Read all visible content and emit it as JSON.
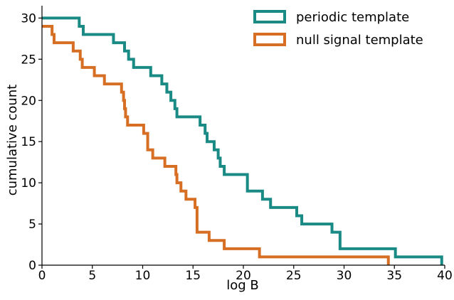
{
  "chart_data": {
    "type": "line",
    "step": "post",
    "xlabel": "log B",
    "ylabel": "cumulative count",
    "xlim": [
      0,
      40
    ],
    "ylim": [
      0,
      31.5
    ],
    "xticks": [
      0,
      5,
      10,
      15,
      20,
      25,
      30,
      35,
      40
    ],
    "yticks": [
      0,
      5,
      10,
      15,
      20,
      25,
      30
    ],
    "grid": false,
    "legend_position": "top-right",
    "series": [
      {
        "name": "periodic template",
        "color": "#1a8a85",
        "x": [
          0,
          3.7,
          4.1,
          7.1,
          8.2,
          8.6,
          9.1,
          10.8,
          11.9,
          12.4,
          12.8,
          13.2,
          13.4,
          15.7,
          16.2,
          16.4,
          17.1,
          17.5,
          17.7,
          18.1,
          20.4,
          21.9,
          22.7,
          25.3,
          25.8,
          28.8,
          29.6,
          35.1,
          39.7
        ],
        "y": [
          30,
          29,
          28,
          27,
          26,
          25,
          24,
          23,
          22,
          21,
          20,
          19,
          18,
          17,
          16,
          15,
          14,
          13,
          12,
          11,
          9,
          8,
          7,
          6,
          5,
          4,
          2,
          1,
          0
        ]
      },
      {
        "name": "null signal template",
        "color": "#d66e23",
        "x": [
          0,
          1.0,
          1.2,
          3.1,
          3.8,
          4.0,
          5.2,
          6.2,
          7.9,
          8.1,
          8.2,
          8.3,
          8.5,
          10.1,
          10.5,
          11.0,
          12.2,
          13.3,
          13.4,
          13.8,
          14.3,
          15.2,
          15.4,
          16.6,
          18.1,
          21.6,
          34.4
        ],
        "y": [
          29,
          28,
          27,
          26,
          25,
          24,
          23,
          22,
          21,
          20,
          19,
          18,
          17,
          16,
          14,
          13,
          12,
          11,
          10,
          9,
          8,
          7,
          4,
          3,
          2,
          1,
          0
        ]
      }
    ]
  }
}
